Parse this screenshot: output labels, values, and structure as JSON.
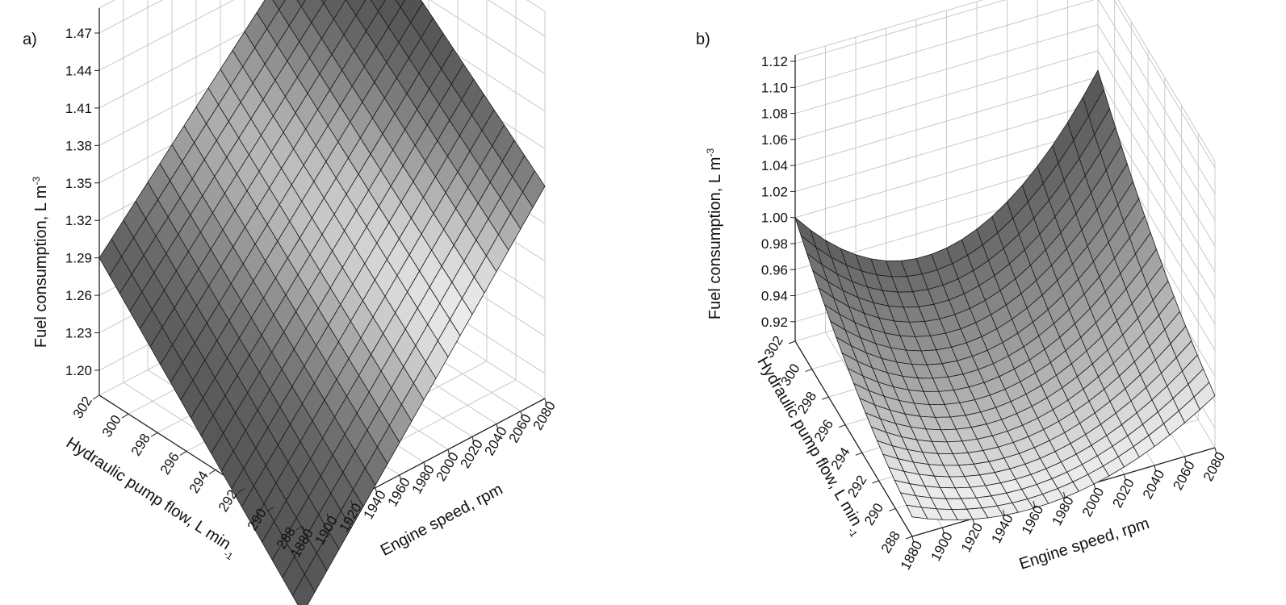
{
  "chart_data": [
    {
      "panel": "a)",
      "type": "surface",
      "x_label": "Engine speed, rpm",
      "y_label": "Hydraulic pump flow, L min",
      "y_label_sup": "-1",
      "z_label": "Fuel consumption, L m",
      "z_label_sup": "-3",
      "x_ticks": [
        "1880",
        "1900",
        "1920",
        "1940",
        "1960",
        "1980",
        "2000",
        "2020",
        "2040",
        "2060",
        "2080"
      ],
      "y_ticks": [
        "288",
        "290",
        "292",
        "294",
        "296",
        "298",
        "300",
        "302"
      ],
      "z_ticks": [
        "1.20",
        "1.23",
        "1.26",
        "1.29",
        "1.32",
        "1.35",
        "1.38",
        "1.41",
        "1.44",
        "1.47"
      ],
      "x_range": [
        1880,
        2080
      ],
      "y_range": [
        288,
        302
      ],
      "z_range": [
        1.18,
        1.49
      ],
      "corner_values": {
        "x1880_y288": 1.11,
        "x2080_y288": 1.35,
        "x1880_y302": 1.29,
        "x2080_y302": 1.49
      },
      "surface_model": "bilinear",
      "grid": true
    },
    {
      "panel": "b)",
      "type": "surface",
      "x_label": "Engine speed, rpm",
      "y_label": "Hydraulic pump flow, L min",
      "y_label_sup": "-1",
      "z_label": "Fuel consumption, L m",
      "z_label_sup": "-3",
      "x_ticks": [
        "1880",
        "1900",
        "1920",
        "1940",
        "1960",
        "1980",
        "2000",
        "2020",
        "2040",
        "2060",
        "2080"
      ],
      "y_ticks": [
        "288",
        "290",
        "292",
        "294",
        "296",
        "298",
        "300",
        "302"
      ],
      "z_ticks": [
        "0.92",
        "0.94",
        "0.96",
        "0.98",
        "1.00",
        "1.02",
        "1.04",
        "1.06",
        "1.08",
        "1.10",
        "1.12"
      ],
      "x_range": [
        1880,
        2080
      ],
      "y_range": [
        288,
        302
      ],
      "z_range": [
        0.905,
        1.125
      ],
      "corner_values": {
        "x1880_y302": 1.0,
        "x2080_y302": 1.045,
        "x2080_y288": 0.945,
        "x1880_y288": 0.92
      },
      "minimum_value": 0.91,
      "surface_model": "quadratic",
      "grid": true
    }
  ]
}
